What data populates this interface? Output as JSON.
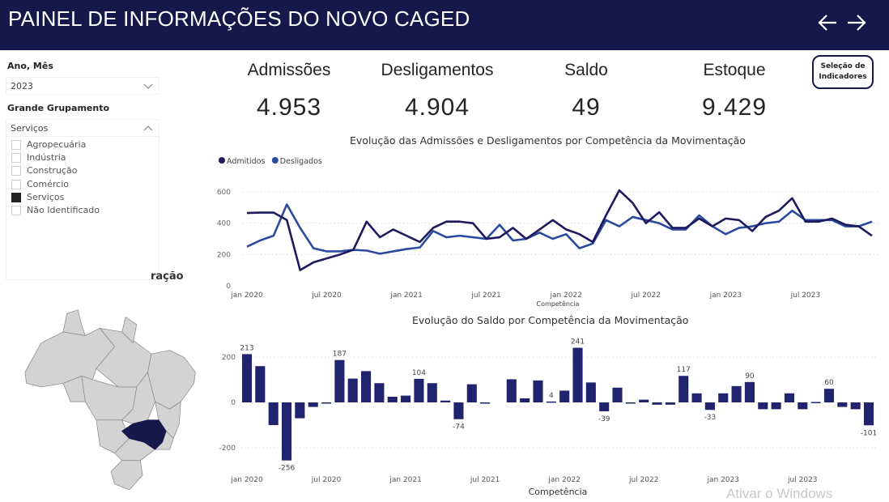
{
  "header": {
    "title": "PAINEL DE INFORMAÇÕES DO NOVO CAGED",
    "back_icon": "arrow-left-icon",
    "forward_icon": "arrow-right-icon"
  },
  "filters": {
    "period_label": "Ano, Mês",
    "period_value": "2023",
    "group_label": "Grande Grupamento",
    "group_value": "Serviços",
    "group_options": [
      {
        "label": "Agropecuária",
        "checked": false
      },
      {
        "label": "Indústria",
        "checked": false
      },
      {
        "label": "Construção",
        "checked": false
      },
      {
        "label": "Comércio",
        "checked": false
      },
      {
        "label": "Serviços",
        "checked": true
      },
      {
        "label": "Não Identificado",
        "checked": false
      }
    ]
  },
  "kpis": [
    {
      "label": "Admissões",
      "value": "4.953"
    },
    {
      "label": "Desligamentos",
      "value": "4.904"
    },
    {
      "label": "Saldo",
      "value": "49"
    },
    {
      "label": "Estoque",
      "value": "9.429"
    }
  ],
  "selection_button": {
    "line1": "Seleção de",
    "line2": "Indicadores"
  },
  "map": {
    "partial_title": "ração",
    "highlighted_state": "Minas Gerais",
    "highlight_color": "#15184a",
    "base_color": "#d3d3d3"
  },
  "watermark": "Ativar o Windows",
  "chart_data": [
    {
      "type": "line",
      "title": "Evolução das Admissões e Desligamentos por Competência da Movimentação",
      "xlabel": "Competência",
      "ylabel": "",
      "ylim": [
        0,
        600
      ],
      "yticks": [
        0,
        200,
        400,
        600
      ],
      "xtick_labels": [
        "jan 2020",
        "jul 2020",
        "jan 2021",
        "jul 2021",
        "jan 2022",
        "jul 2022",
        "jan 2023",
        "jul 2023"
      ],
      "grid": true,
      "legend": "top-left",
      "x_count": 48,
      "series": [
        {
          "name": "Admitidos",
          "color": "#1f1a5e",
          "values": [
            465,
            468,
            468,
            420,
            100,
            150,
            175,
            200,
            230,
            410,
            310,
            360,
            320,
            280,
            370,
            410,
            410,
            400,
            300,
            310,
            370,
            300,
            360,
            420,
            360,
            330,
            280,
            450,
            610,
            530,
            400,
            470,
            370,
            370,
            430,
            380,
            430,
            420,
            350,
            440,
            480,
            560,
            410,
            410,
            430,
            390,
            380,
            320
          ]
        },
        {
          "name": "Desligados",
          "color": "#2a4a9e",
          "values": [
            250,
            290,
            320,
            520,
            370,
            240,
            220,
            220,
            230,
            225,
            205,
            220,
            235,
            245,
            350,
            310,
            320,
            310,
            300,
            390,
            290,
            300,
            340,
            300,
            330,
            240,
            270,
            420,
            380,
            440,
            420,
            400,
            360,
            360,
            450,
            380,
            330,
            370,
            380,
            400,
            410,
            480,
            420,
            420,
            420,
            380,
            380,
            410
          ]
        }
      ]
    },
    {
      "type": "bar",
      "title": "Evolução do Saldo por Competência da Movimentação",
      "xlabel": "Competência",
      "ylabel": "",
      "ylim": [
        -300,
        270
      ],
      "yticks": [
        -200,
        0,
        200
      ],
      "xtick_labels": [
        "jan 2020",
        "jul 2020",
        "jan 2021",
        "jul 2021",
        "jan 2022",
        "jul 2022",
        "jan 2023",
        "jul 2023"
      ],
      "grid": true,
      "color": "#20236e",
      "x_count": 48,
      "values": [
        213,
        160,
        -100,
        -256,
        -70,
        -20,
        -5,
        187,
        105,
        138,
        85,
        25,
        30,
        104,
        85,
        8,
        -74,
        80,
        -5,
        null,
        102,
        18,
        97,
        4,
        52,
        241,
        88,
        -39,
        65,
        -5,
        12,
        -10,
        -10,
        117,
        40,
        -33,
        40,
        72,
        90,
        -30,
        -30,
        40,
        -30,
        2,
        60,
        -20,
        -30,
        -101
      ],
      "data_labels": {
        "0": "213",
        "3": "-256",
        "7": "187",
        "13": "104",
        "16": "-74",
        "23": "4",
        "25": "241",
        "27": "-39",
        "33": "117",
        "35": "-33",
        "38": "90",
        "44": "60",
        "47": "-101"
      }
    }
  ]
}
